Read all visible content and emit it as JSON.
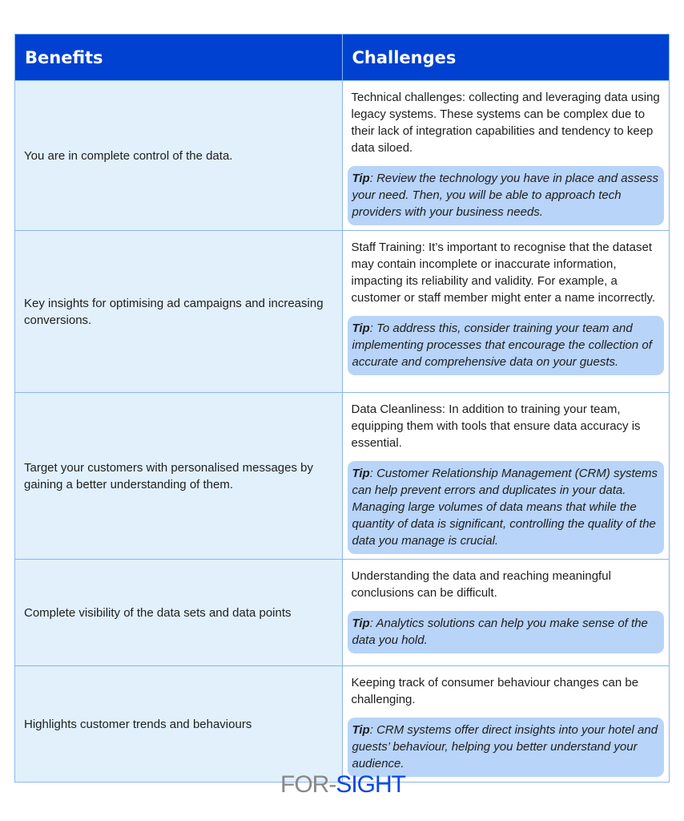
{
  "header": {
    "benefits": "Benefits",
    "challenges": "Challenges"
  },
  "rows": [
    {
      "benefit": "You are in complete control of the data.",
      "challenge": "Technical challenges: collecting and leveraging data using legacy systems. These systems can be complex due to their lack of integration capabilities and tendency to keep data siloed.",
      "tip_label": "Tip",
      "tip": ": Review the technology you have in place and assess your need. Then, you will be able to approach tech providers with your business needs."
    },
    {
      "benefit": "Key insights for optimising ad campaigns and increasing conversions.",
      "challenge": "Staff Training: It’s important to recognise that the dataset may contain incomplete or inaccurate information, impacting its reliability and validity. For example, a customer or staff member might enter a name incorrectly.",
      "tip_label": "Tip",
      "tip": ": To address this, consider training your team and implementing processes that encourage the collection of accurate and comprehensive data on your guests."
    },
    {
      "benefit": "Target your customers with personalised messages by gaining a better understanding of them.",
      "challenge": "Data Cleanliness: In addition to training your team, equipping them with tools that ensure data accuracy is essential.",
      "tip_label": "Tip",
      "tip": ": Customer Relationship Management (CRM) systems can help prevent errors and duplicates in your data. Managing large volumes of data means that while the quantity of data is significant, controlling the quality of the data you manage is crucial."
    },
    {
      "benefit": "Complete visibility of the data sets and data points",
      "challenge": "Understanding the data and reaching meaningful conclusions can be difficult.",
      "tip_label": "Tip",
      "tip": ": Analytics solutions can help you make sense of the data you hold."
    },
    {
      "benefit": "Highlights customer trends and behaviours",
      "challenge": "Keeping track of consumer behaviour changes can be challenging.",
      "tip_label": "Tip",
      "tip": ": CRM systems offer direct insights into your hotel and guests’ behaviour, helping you better understand your audience."
    }
  ],
  "logo": {
    "part1": "FOR-",
    "part2": "SIGHT"
  },
  "colors": {
    "header": "#0041d1",
    "benefit_bg": "#e1f0fb",
    "tip_bg": "#b8d4f8"
  }
}
